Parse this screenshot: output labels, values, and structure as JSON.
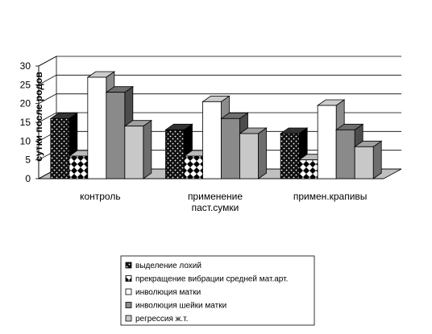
{
  "chart_data": {
    "type": "bar",
    "style": "3d-clustered",
    "title": "",
    "xlabel": "",
    "ylabel": "сутки после родов",
    "ylim": [
      0,
      30
    ],
    "yticks": [
      "0",
      "5",
      "10",
      "15",
      "20",
      "25",
      "30"
    ],
    "grid": true,
    "legend_position": "bottom",
    "categories": [
      {
        "lines": [
          "контроль"
        ]
      },
      {
        "lines": [
          "применение",
          "паст.сумки"
        ]
      },
      {
        "lines": [
          "примен.крапивы"
        ]
      }
    ],
    "series": [
      {
        "name": "выделение лохий",
        "values": [
          16,
          13,
          12
        ],
        "color": "#111111",
        "pattern": "dots"
      },
      {
        "name": "прекращение вибрации средней мат.арт.",
        "values": [
          6,
          6,
          5
        ],
        "color": "#ffffff",
        "pattern": "checker"
      },
      {
        "name": "инволюция матки",
        "values": [
          27,
          20.5,
          19.5
        ],
        "color": "#ffffff",
        "pattern": "solid"
      },
      {
        "name": "инволюция шейки матки",
        "values": [
          23,
          16,
          13
        ],
        "color": "#8a8a8a",
        "pattern": "solid"
      },
      {
        "name": "регрессия ж.т.",
        "values": [
          14,
          12,
          8.5
        ],
        "color": "#c8c8c8",
        "pattern": "solid"
      }
    ]
  }
}
